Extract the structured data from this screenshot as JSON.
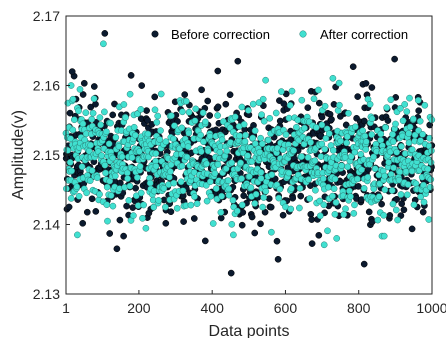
{
  "chart_data": {
    "type": "scatter",
    "xlabel": "Data points",
    "ylabel": "Amplitude(v)",
    "xlim": [
      1,
      1000
    ],
    "ylim": [
      2.13,
      2.17
    ],
    "x_ticks": [
      1,
      200,
      400,
      600,
      800,
      1000
    ],
    "x_tick_labels": [
      "1",
      "200",
      "400",
      "600",
      "800",
      "1000"
    ],
    "y_ticks": [
      2.13,
      2.14,
      2.15,
      2.16,
      2.17
    ],
    "y_tick_labels": [
      "2.13",
      "2.14",
      "2.15",
      "2.16",
      "2.17"
    ],
    "grid": false,
    "legend_position": "top",
    "series": [
      {
        "name": "Before correction",
        "color": "#0b1a2e",
        "n_points": 1000,
        "mean": 2.1495,
        "std": 0.0042,
        "outliers": [
          {
            "x": 107,
            "y": 2.1675
          },
          {
            "x": 898,
            "y": 2.1638
          },
          {
            "x": 785,
            "y": 2.1627
          },
          {
            "x": 470,
            "y": 2.1635
          },
          {
            "x": 18,
            "y": 2.162
          },
          {
            "x": 452,
            "y": 2.133
          },
          {
            "x": 815,
            "y": 2.1343
          },
          {
            "x": 580,
            "y": 2.135
          },
          {
            "x": 140,
            "y": 2.1365
          }
        ]
      },
      {
        "name": "After correction",
        "color": "#40e0d0",
        "n_points": 1000,
        "mean": 2.1495,
        "std": 0.0038,
        "outliers": [
          {
            "x": 103,
            "y": 2.166
          },
          {
            "x": 15,
            "y": 2.16
          },
          {
            "x": 32,
            "y": 2.1385
          },
          {
            "x": 458,
            "y": 2.1385
          },
          {
            "x": 740,
            "y": 2.138
          }
        ]
      }
    ]
  }
}
